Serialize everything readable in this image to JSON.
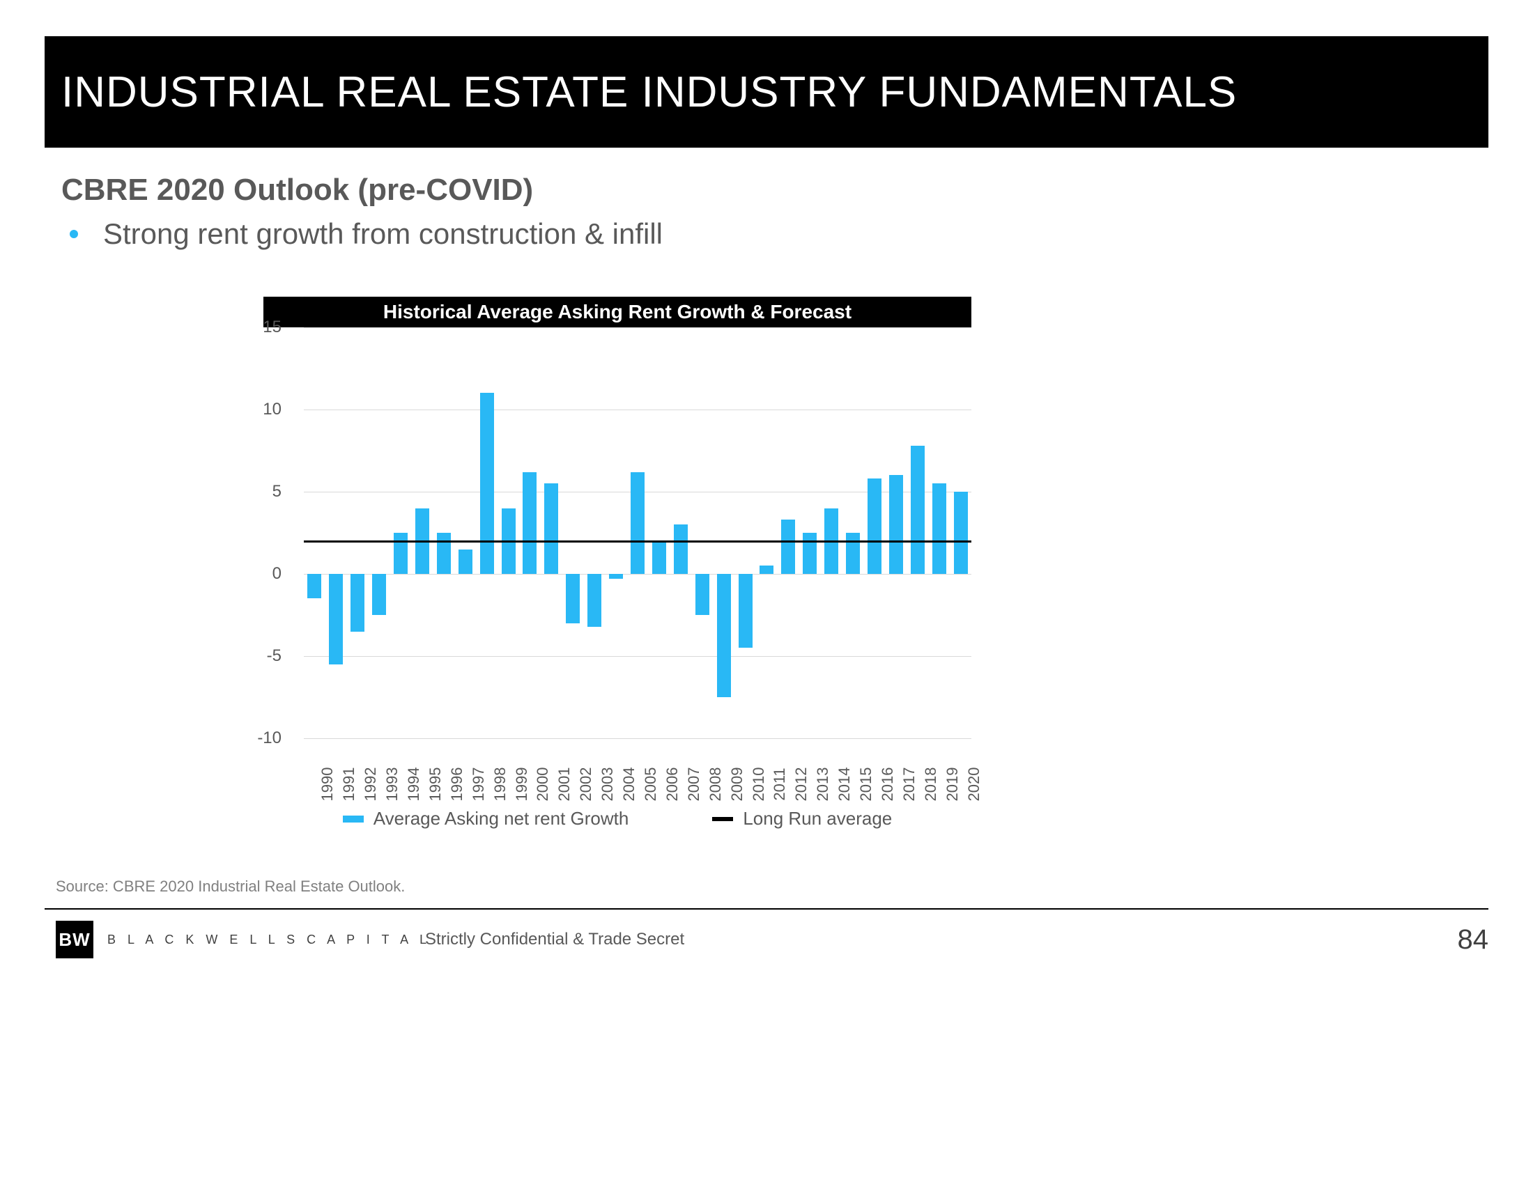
{
  "slide": {
    "title": "INDUSTRIAL REAL ESTATE INDUSTRY FUNDAMENTALS",
    "subtitle": "CBRE 2020 Outlook (pre-COVID)",
    "bullet": "Strong rent growth from construction & infill",
    "bullet_color": "#29b8f5"
  },
  "chart": {
    "type": "bar",
    "title": "Historical Average Asking Rent Growth & Forecast",
    "bar_color": "#29b8f5",
    "grid_color": "#d9d9d9",
    "axis_text_color": "#595959",
    "longrun_color": "#000000",
    "longrun_value": 2.0,
    "ylim": [
      -10,
      15
    ],
    "ytick_step": 5,
    "yticks": [
      -10,
      -5,
      0,
      5,
      10,
      15
    ],
    "years": [
      "1990",
      "1991",
      "1992",
      "1993",
      "1994",
      "1995",
      "1996",
      "1997",
      "1998",
      "1999",
      "2000",
      "2001",
      "2002",
      "2003",
      "2004",
      "2005",
      "2006",
      "2007",
      "2008",
      "2009",
      "2010",
      "2011",
      "2012",
      "2013",
      "2014",
      "2015",
      "2016",
      "2017",
      "2018",
      "2019",
      "2020"
    ],
    "values": [
      -1.5,
      -5.5,
      -3.5,
      -2.5,
      2.5,
      4.0,
      2.5,
      1.5,
      11.0,
      4.0,
      6.2,
      5.5,
      -3.0,
      -3.2,
      -0.3,
      6.2,
      2.0,
      3.0,
      -2.5,
      -7.5,
      -4.5,
      0.5,
      3.3,
      2.5,
      4.0,
      2.5,
      5.8,
      6.0,
      7.8,
      5.5,
      5.0
    ],
    "legend": {
      "series1": "Average Asking net rent Growth",
      "series2": "Long Run average"
    }
  },
  "footer": {
    "source": "Source: CBRE 2020 Industrial Real Estate Outlook.",
    "logo_text": "BW",
    "company": "B L A C K W E L L S   C A P I T A L",
    "confidential": "Strictly Confidential & Trade Secret",
    "page": "84"
  },
  "colors": {
    "black": "#000000",
    "white": "#ffffff",
    "text_grey": "#595959"
  }
}
